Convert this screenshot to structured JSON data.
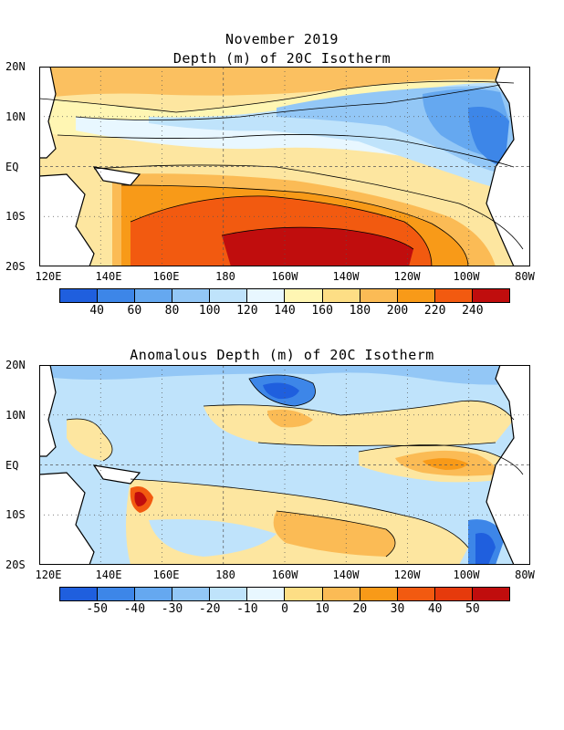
{
  "header": {
    "date": "November 2019"
  },
  "panels": [
    {
      "title": "Depth (m) of 20C Isotherm",
      "y_labels": [
        "20N",
        "10N",
        "EQ",
        "10S",
        "20S"
      ],
      "x_labels": [
        "120E",
        "140E",
        "160E",
        "180",
        "160W",
        "140W",
        "120W",
        "100W",
        "80W"
      ],
      "colorbar": {
        "colors": [
          "#1f5fde",
          "#3d86e8",
          "#65a8f0",
          "#93c7f6",
          "#bfe3fb",
          "#e8f7ff",
          "#fff6b3",
          "#fdde85",
          "#fbbb55",
          "#f89a18",
          "#f25a10",
          "#c00d0d"
        ],
        "labels": [
          "40",
          "60",
          "80",
          "100",
          "120",
          "140",
          "160",
          "180",
          "200",
          "220",
          "240"
        ]
      }
    },
    {
      "title": "Anomalous Depth (m) of 20C Isotherm",
      "y_labels": [
        "20N",
        "10N",
        "EQ",
        "10S",
        "20S"
      ],
      "x_labels": [
        "120E",
        "140E",
        "160E",
        "180",
        "160W",
        "140W",
        "120W",
        "100W",
        "80W"
      ],
      "colorbar": {
        "colors": [
          "#1f5fde",
          "#3d86e8",
          "#65a8f0",
          "#93c7f6",
          "#bfe3fb",
          "#e8f7ff",
          "#fdde85",
          "#fbbb55",
          "#f89a18",
          "#f25a10",
          "#e63a0c",
          "#c00d0d"
        ],
        "labels": [
          "-50",
          "-40",
          "-30",
          "-20",
          "-10",
          "0",
          "10",
          "20",
          "30",
          "40",
          "50"
        ]
      }
    }
  ]
}
